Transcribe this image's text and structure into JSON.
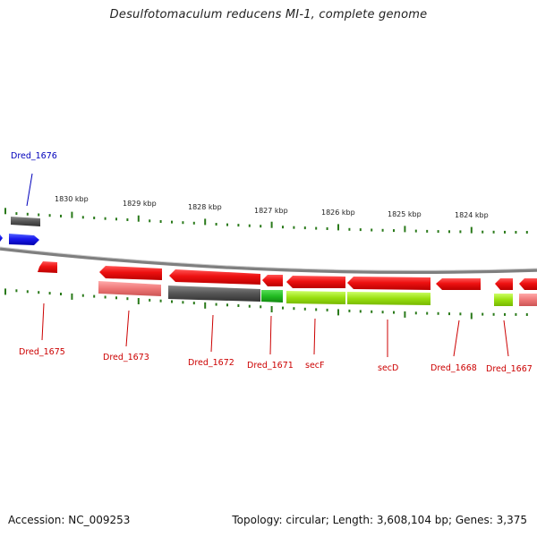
{
  "title": "Desulfotomaculum reducens MI-1, complete genome",
  "footer": {
    "accession": "Accession: NC_009253",
    "stats": "Topology: circular; Length: 3,608,104 bp; Genes: 3,375"
  },
  "colors": {
    "forward_cds": "#ee1111",
    "reverse_cds": "#1a1aee",
    "gene_dark": "#555555",
    "gene_pink": "#ee7777",
    "gene_lime": "#99e010",
    "gene_green": "#22bb22",
    "tick": "#2a7a1a",
    "backbone": "#8a8a8a",
    "label_red": "#cc0000",
    "label_blue": "#0000bb"
  },
  "scale_labels": [
    "1830 kbp",
    "1829 kbp",
    "1828 kbp",
    "1827 kbp",
    "1826 kbp",
    "1825 kbp",
    "1824 kbp"
  ],
  "gene_labels": [
    {
      "id": "dred-1676",
      "text": "Dred_1676",
      "color": "blue"
    },
    {
      "id": "dred-1675",
      "text": "Dred_1675",
      "color": "red"
    },
    {
      "id": "dred-1673",
      "text": "Dred_1673",
      "color": "red"
    },
    {
      "id": "dred-1672",
      "text": "Dred_1672",
      "color": "red"
    },
    {
      "id": "dred-1671",
      "text": "Dred_1671",
      "color": "red"
    },
    {
      "id": "secf",
      "text": "secF",
      "color": "red"
    },
    {
      "id": "secd",
      "text": "secD",
      "color": "red"
    },
    {
      "id": "dred-1668",
      "text": "Dred_1668",
      "color": "red"
    },
    {
      "id": "dred-1667",
      "text": "Dred_1667",
      "color": "red"
    }
  ]
}
